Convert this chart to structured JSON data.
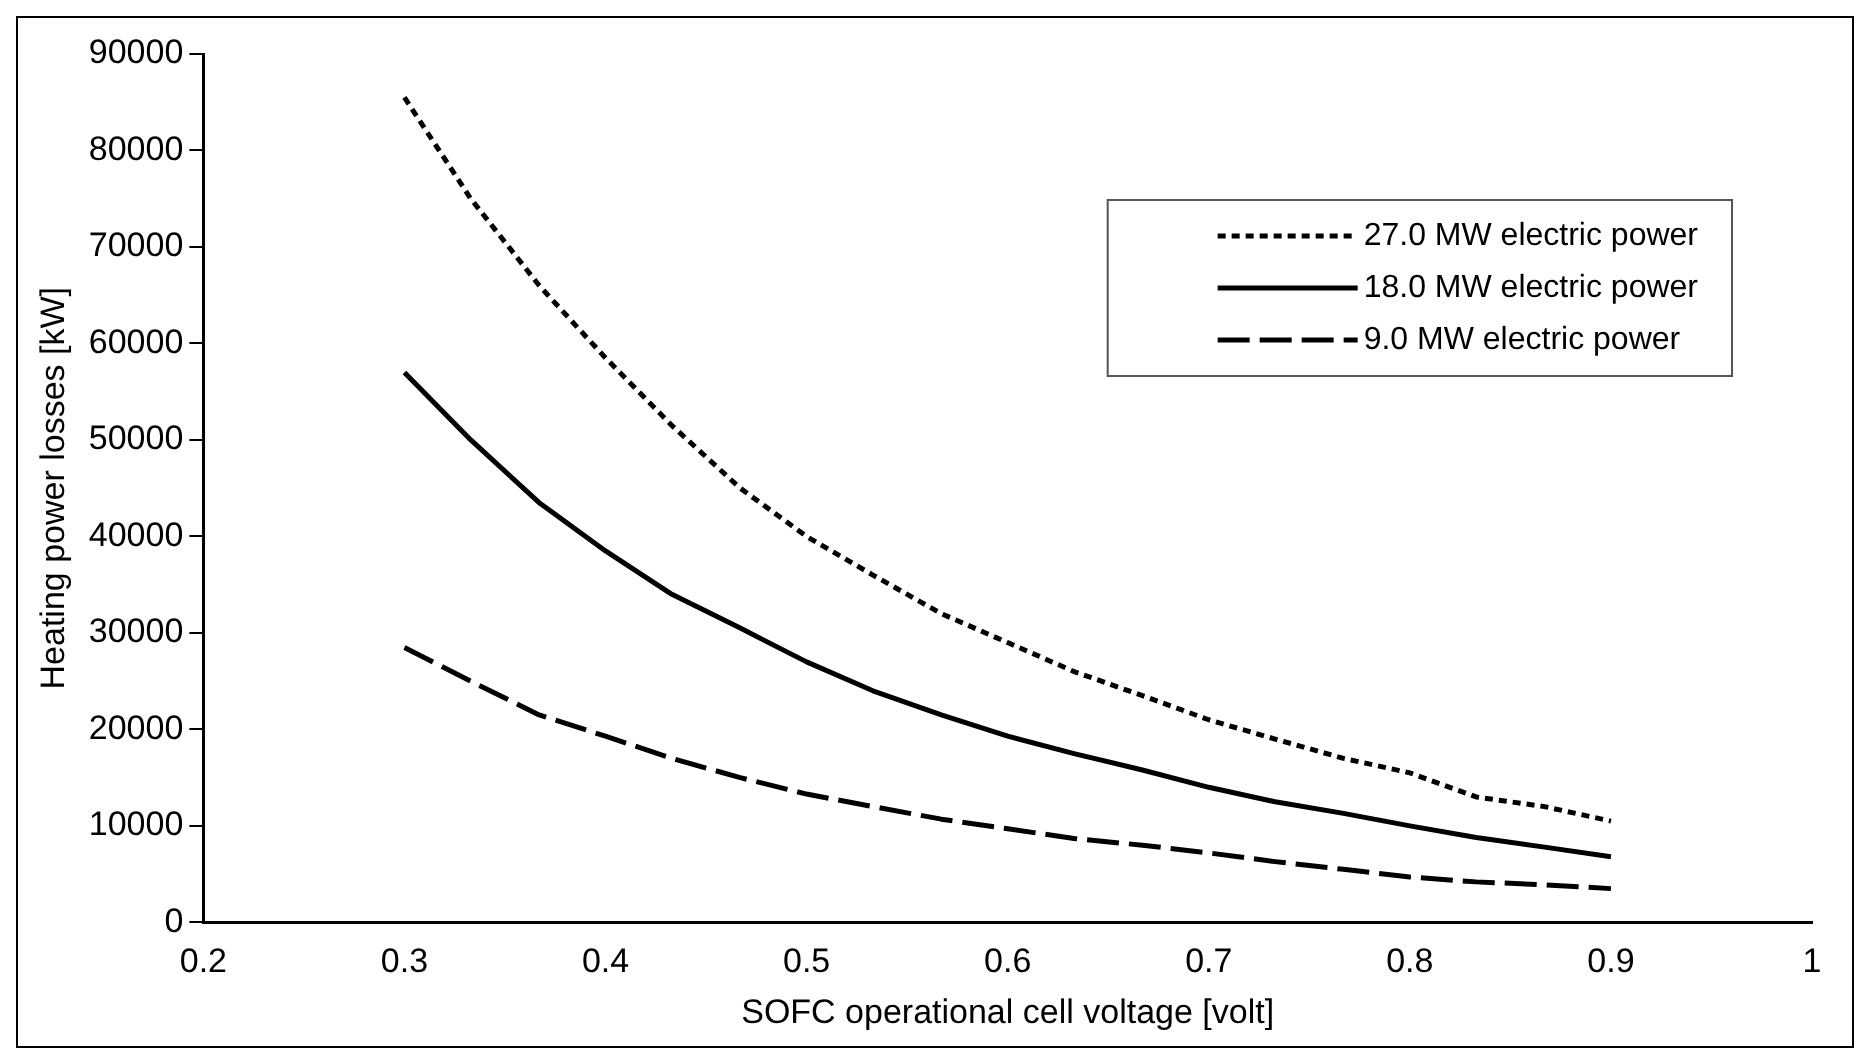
{
  "chart_data": {
    "type": "line",
    "xlabel": "SOFC operational cell voltage [volt]",
    "ylabel": "Heating power losses [kW]",
    "x": [
      0.3,
      0.333,
      0.367,
      0.4,
      0.433,
      0.467,
      0.5,
      0.533,
      0.567,
      0.6,
      0.633,
      0.667,
      0.7,
      0.733,
      0.767,
      0.8,
      0.833,
      0.867,
      0.9
    ],
    "series": [
      {
        "name": "27.0 MW electric power",
        "color": "#000000",
        "line_style": "dotted",
        "values": [
          85500,
          75000,
          66000,
          58500,
          51500,
          45000,
          40000,
          36000,
          32000,
          29000,
          26000,
          23500,
          21000,
          19000,
          17000,
          15500,
          13000,
          12000,
          10500
        ]
      },
      {
        "name": "18.0 MW electric power",
        "color": "#000000",
        "line_style": "solid",
        "values": [
          57000,
          50000,
          43500,
          38500,
          34000,
          30500,
          27000,
          24000,
          21500,
          19300,
          17500,
          15800,
          14000,
          12500,
          11300,
          10000,
          8800,
          7800,
          6800
        ]
      },
      {
        "name": "9.0 MW electric power",
        "color": "#000000",
        "line_style": "dashed",
        "values": [
          28500,
          25000,
          21500,
          19300,
          17000,
          15000,
          13300,
          12000,
          10700,
          9700,
          8700,
          8000,
          7200,
          6300,
          5500,
          4700,
          4200,
          3900,
          3500
        ]
      }
    ],
    "xlim": [
      0.2,
      1
    ],
    "xticks": [
      0.2,
      0.3,
      0.4,
      0.5,
      0.6,
      0.7,
      0.8,
      0.9,
      1
    ],
    "ylim": [
      0,
      90000
    ],
    "yticks": [
      0,
      10000,
      20000,
      30000,
      40000,
      50000,
      60000,
      70000,
      80000,
      90000
    ],
    "grid": false,
    "legend": "top right",
    "marker": "none"
  }
}
